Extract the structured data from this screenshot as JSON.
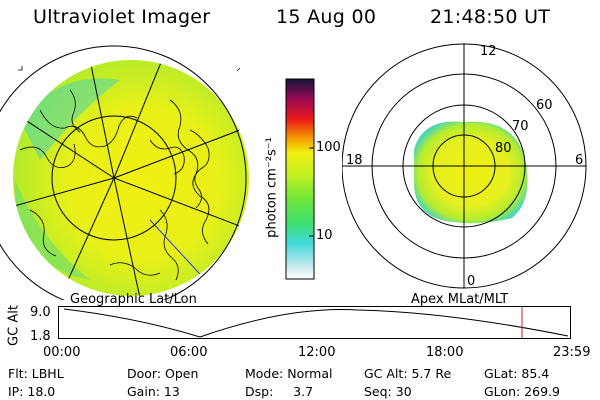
{
  "header": {
    "title": "Ultraviolet Imager",
    "date": "15 Aug 00",
    "time": "21:48:50 UT"
  },
  "geo_panel": {
    "caption": "Geographic Lat/Lon"
  },
  "apex_panel": {
    "caption": "Apex MLat/MLT",
    "mlt_labels": [
      "12",
      "18",
      "6",
      "0"
    ],
    "mlat_labels": [
      "60",
      "70",
      "80"
    ]
  },
  "colorbar": {
    "unit_label": "photon cm⁻²s⁻¹",
    "scale": "log",
    "tick_labels": [
      "100",
      "10"
    ],
    "colors": [
      "#ffffff",
      "#bfe8ee",
      "#40d8d8",
      "#40e070",
      "#6fe63a",
      "#c4f020",
      "#f0f010",
      "#f5a000",
      "#e81818",
      "#9a0a55",
      "#14143a"
    ]
  },
  "altitude_plot": {
    "ylabel": "GC Alt",
    "ytick_labels": [
      "9.0",
      "1.8"
    ],
    "xtick_labels": [
      "00:00",
      "06:00",
      "12:00",
      "18:00",
      "23:59"
    ],
    "current_marker_color": "#cc2222"
  },
  "status": {
    "flt": "Flt: LBHL",
    "door": "Door: Open",
    "mode": "Mode: Normal",
    "gc_alt": "GC Alt: 5.7 Re",
    "glat": "GLat:  85.4",
    "ip": "IP: 18.0",
    "gain": "Gain: 13",
    "dsp": "Dsp:     3.7",
    "seq": "Seq: 30",
    "glon": "GLon: 269.9"
  }
}
